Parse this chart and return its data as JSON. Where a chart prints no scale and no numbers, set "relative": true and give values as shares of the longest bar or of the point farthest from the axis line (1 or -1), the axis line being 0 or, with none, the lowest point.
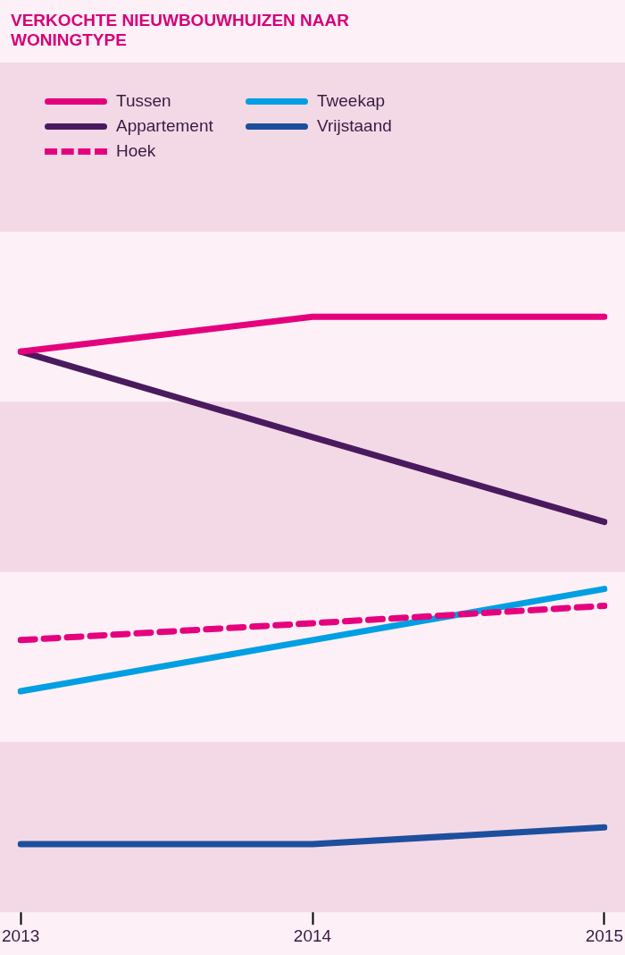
{
  "chart_data": {
    "type": "line",
    "title": "VERKOCHTE NIEUWBOUWHUIZEN NAAR WONINGTYPE",
    "relative": true,
    "categories": [
      "2013",
      "2014",
      "2015"
    ],
    "legend": "top left",
    "grid": false,
    "series": [
      {
        "name": "Tussen",
        "color": "#e5007e",
        "values": [
          0.934,
          1,
          1
        ]
      },
      {
        "name": "Appartement",
        "color": "#4a1a5e",
        "values": [
          0.934,
          0.772,
          0.611
        ]
      },
      {
        "name": "Hoek",
        "color": "#e5007e",
        "line_style": "dashed",
        "values": [
          0.387,
          0.419,
          0.452
        ]
      },
      {
        "name": "Tweekap",
        "color": "#009fe3",
        "values": [
          0.29,
          0.387,
          0.484
        ]
      },
      {
        "name": "Vrijstaand",
        "color": "#1d4f9e",
        "values": [
          0,
          0,
          0.032
        ]
      }
    ],
    "bands": [
      {
        "axis": "y",
        "from": 1.161,
        "to": 1.482,
        "color": "#f3d9e6"
      },
      {
        "axis": "y",
        "from": 0.516,
        "to": 0.839,
        "color": "#f3d9e6"
      },
      {
        "axis": "y",
        "from": -0.129,
        "to": 0.194,
        "color": "#f3d9e6"
      }
    ]
  }
}
